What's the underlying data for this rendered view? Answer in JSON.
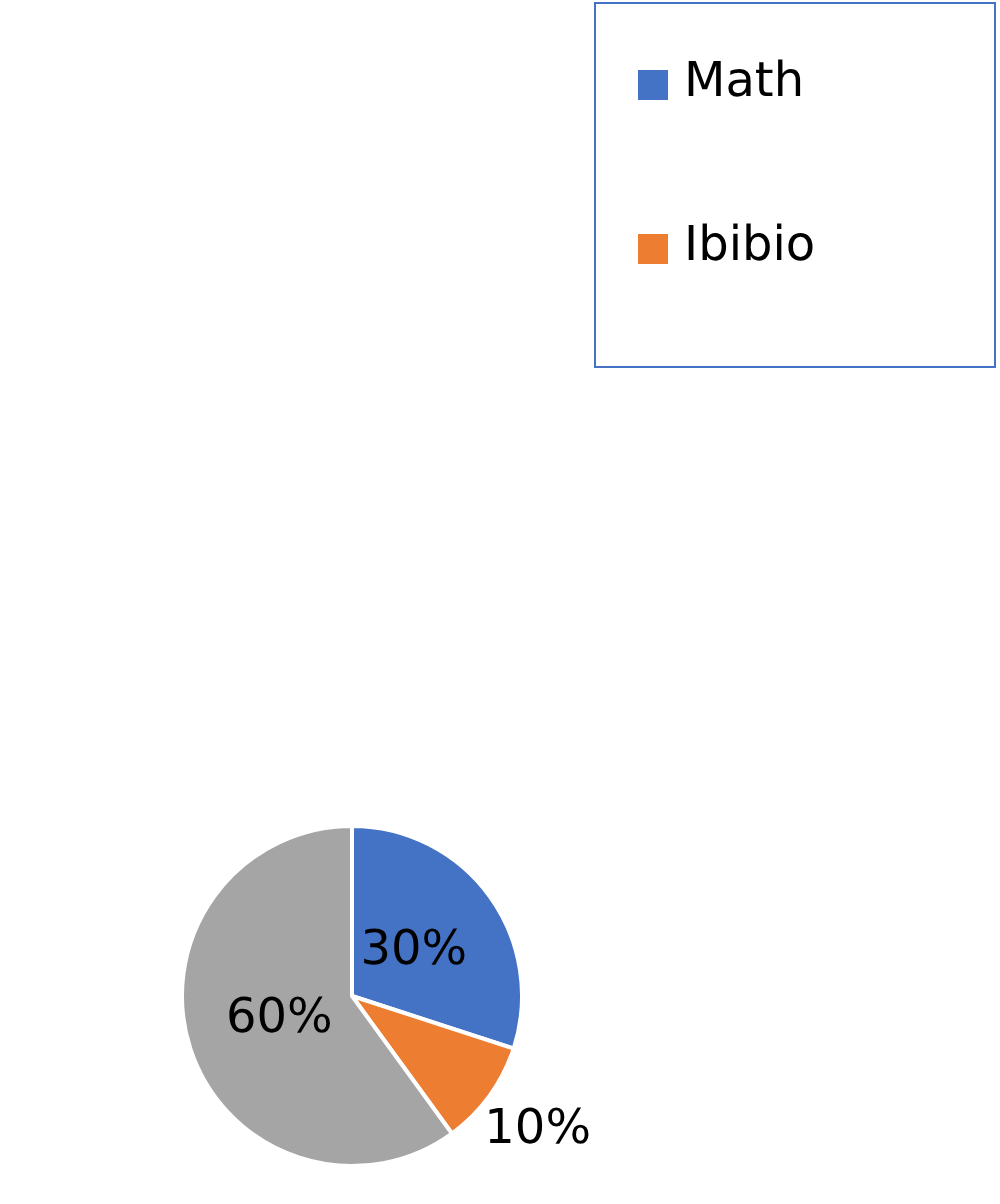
{
  "chart_data": {
    "type": "pie",
    "categories": [
      "Math",
      "Ibibio",
      null
    ],
    "values": [
      30,
      10,
      60
    ],
    "colors": [
      "#4472c4",
      "#ed7d31",
      "#a5a5a5"
    ],
    "value_labels": [
      "30%",
      "10%",
      "60%"
    ],
    "legend": "top right"
  }
}
